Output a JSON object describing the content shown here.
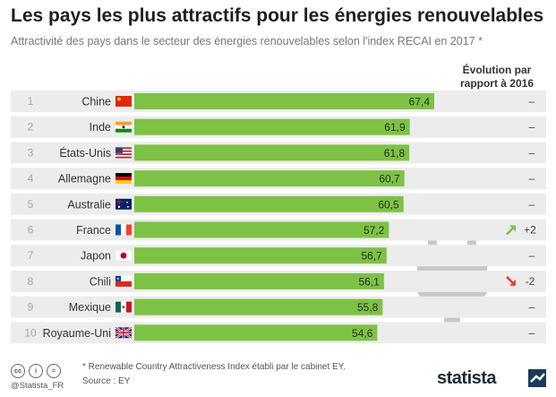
{
  "title": "Les pays les plus attractifs pour les énergies renouvelables",
  "subtitle": "Attractivité des pays dans le secteur des énergies renouvelables selon l'index RECAI en 2017 *",
  "evolution_header_line1": "Évolution par",
  "evolution_header_line2": "rapport à 2016",
  "footnote": "* Renewable Country Attractiveness Index établi par le cabinet EY.",
  "source": "Source : EY",
  "handle": "@Statista_FR",
  "brand": "statista",
  "license_icons": [
    "cc-icon",
    "by-icon",
    "eq-icon"
  ],
  "colors": {
    "bar": "#7dc244",
    "row_bg": "#ececec",
    "up_arrow": "#7dc244",
    "down_arrow": "#e0452b",
    "plug": "#c8c8c8"
  },
  "chart_data": {
    "type": "bar",
    "orientation": "horizontal",
    "categories": [
      "Chine",
      "Inde",
      "États-Unis",
      "Allemagne",
      "Australie",
      "France",
      "Japon",
      "Chili",
      "Mexique",
      "Royaume-Uni"
    ],
    "ranks": [
      "1",
      "2",
      "3",
      "4",
      "5",
      "6",
      "7",
      "8",
      "9",
      "10"
    ],
    "values": [
      67.4,
      61.9,
      61.8,
      60.7,
      60.5,
      57.2,
      56.7,
      56.1,
      55.8,
      54.6
    ],
    "value_labels": [
      "67,4",
      "61,9",
      "61,8",
      "60,7",
      "60,5",
      "57,2",
      "56,7",
      "56,1",
      "55,8",
      "54,6"
    ],
    "evolution": [
      "–",
      "–",
      "–",
      "–",
      "–",
      "+2",
      "–",
      "-2",
      "–",
      "–"
    ],
    "evolution_direction": [
      "none",
      "none",
      "none",
      "none",
      "none",
      "up",
      "none",
      "down",
      "none",
      "none"
    ],
    "flags": [
      "flag-china-icon",
      "flag-india-icon",
      "flag-usa-icon",
      "flag-germany-icon",
      "flag-australia-icon",
      "flag-france-icon",
      "flag-japan-icon",
      "flag-chile-icon",
      "flag-mexico-icon",
      "flag-uk-icon"
    ]
  }
}
